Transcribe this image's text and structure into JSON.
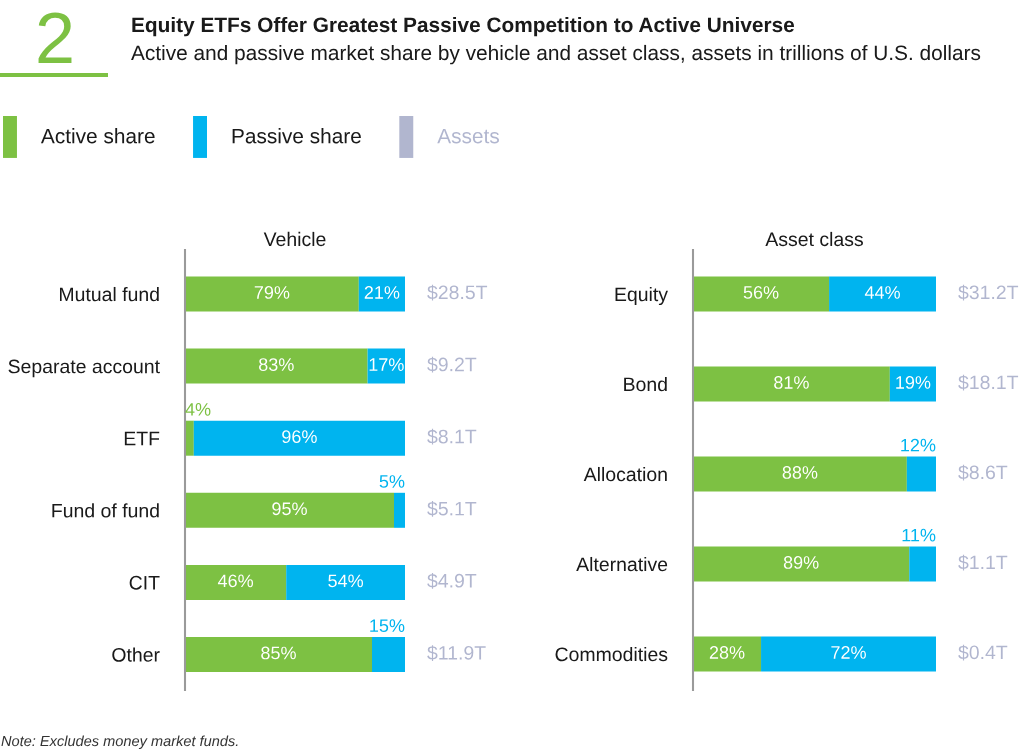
{
  "chart_data": [
    {
      "type": "other",
      "title": "Equity ETFs Offer Greatest Passive Competition to Active Universe",
      "subtitle": "Active and passive market share by vehicle and asset class, assets in trillions of U.S. dollars",
      "annotations": [
        "2"
      ]
    },
    {
      "type": "bar",
      "orientation": "horizontal",
      "stacked": true,
      "title": "Vehicle",
      "annotations": [
        "$28.5T",
        "$9.2T",
        "$8.1T",
        "$5.1T",
        "$4.9T",
        "$11.9T",
        "Note: Excludes money market funds."
      ],
      "categories": [
        "Mutual fund",
        "Separate account",
        "ETF",
        "Fund of fund",
        "CIT",
        "Other"
      ],
      "series": [
        {
          "name": "Active share",
          "color": "#7dc143",
          "values": [
            79,
            83,
            4,
            95,
            46,
            85
          ],
          "value_labels": [
            "79%",
            "83%",
            "4%",
            "95%",
            "46%",
            "85%"
          ]
        },
        {
          "name": "Passive share",
          "color": "#00b4ef",
          "values": [
            21,
            17,
            96,
            5,
            54,
            15
          ],
          "value_labels": [
            "21%",
            "17%",
            "96%",
            "5%",
            "54%",
            "15%"
          ]
        },
        {
          "name": "Assets",
          "type": "other",
          "color": "#b1b6cf",
          "values": [
            null,
            null,
            null,
            null,
            null,
            null
          ]
        }
      ],
      "xlim": [
        0,
        100
      ],
      "tick_labels": "y",
      "legend": "top left"
    },
    {
      "type": "bar",
      "orientation": "horizontal",
      "stacked": true,
      "title": "Asset class",
      "annotations": [
        "$31.2T",
        "$18.1T",
        "$8.6T",
        "$1.1T",
        "$0.4T"
      ],
      "categories": [
        "Equity",
        "Bond",
        "Allocation",
        "Alternative",
        "Commodities"
      ],
      "series": [
        {
          "color": "#7dc143",
          "values": [
            56,
            81,
            88,
            89,
            28
          ],
          "value_labels": [
            "56%",
            "81%",
            "88%",
            "89%",
            "28%"
          ]
        },
        {
          "color": "#00b4ef",
          "values": [
            44,
            19,
            12,
            11,
            72
          ],
          "value_labels": [
            "44%",
            "19%",
            "12%",
            "11%",
            "72%"
          ]
        }
      ],
      "xlim": [
        0,
        100
      ],
      "tick_labels": "y"
    }
  ]
}
